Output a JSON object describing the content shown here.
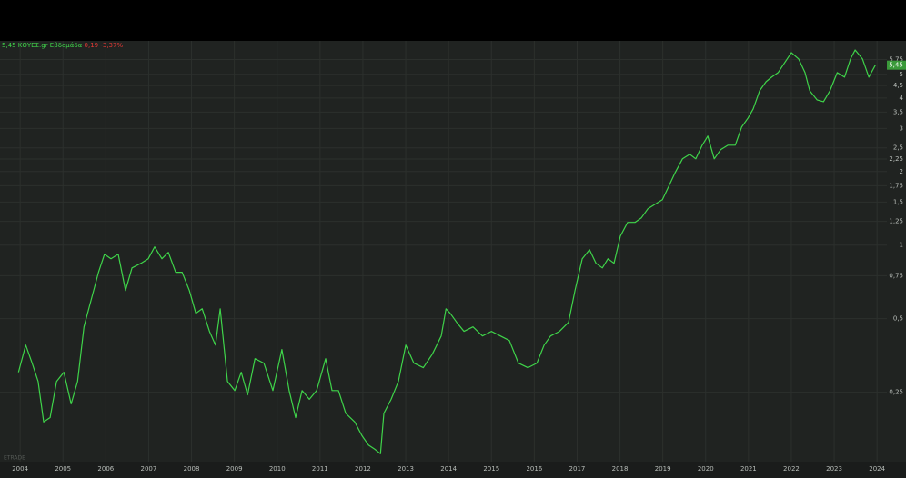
{
  "chart_data": {
    "type": "line",
    "title": "5,45 ΚΟΥΕΣ.gr Εβδομάδα",
    "subtitle": "-0,19 -3,37%",
    "price_label": "5,45",
    "watermark": "ETRADE",
    "color": "#3fd44a",
    "log_scale": true,
    "grid": true,
    "xlim": [
      2003.53,
      2024.23
    ],
    "xticks": [
      2004,
      2005,
      2006,
      2007,
      2008,
      2009,
      2010,
      2011,
      2012,
      2013,
      2014,
      2015,
      2016,
      2017,
      2018,
      2019,
      2020,
      2021,
      2022,
      2023,
      2024
    ],
    "ylim": [
      0.13,
      6.85
    ],
    "yticks": [
      {
        "value": 0.25,
        "label": "0,25"
      },
      {
        "value": 0.5,
        "label": "0,5"
      },
      {
        "value": 0.75,
        "label": "0,75"
      },
      1,
      {
        "value": 1.25,
        "label": "1,25"
      },
      {
        "value": 1.5,
        "label": "1,5"
      },
      {
        "value": 1.75,
        "label": "1,75"
      },
      2,
      {
        "value": 2.25,
        "label": "2,25"
      },
      {
        "value": 2.5,
        "label": "2,5"
      },
      3,
      {
        "value": 3.5,
        "label": "3,5"
      },
      4,
      {
        "value": 4.5,
        "label": "4,5"
      },
      5,
      {
        "value": 5.75,
        "label": "5,75"
      }
    ],
    "x": [
      2003.96,
      2004.13,
      2004.28,
      2004.42,
      2004.55,
      2004.7,
      2004.85,
      2005.02,
      2005.19,
      2005.34,
      2005.49,
      2005.66,
      2005.83,
      2005.97,
      2006.12,
      2006.29,
      2006.46,
      2006.61,
      2006.82,
      2006.99,
      2007.14,
      2007.31,
      2007.46,
      2007.63,
      2007.78,
      2007.95,
      2008.1,
      2008.25,
      2008.42,
      2008.56,
      2008.67,
      2008.84,
      2009.01,
      2009.16,
      2009.31,
      2009.48,
      2009.69,
      2009.9,
      2010.11,
      2010.28,
      2010.43,
      2010.58,
      2010.75,
      2010.92,
      2011.13,
      2011.28,
      2011.43,
      2011.6,
      2011.81,
      2011.98,
      2012.13,
      2012.28,
      2012.41,
      2012.49,
      2012.66,
      2012.83,
      2013.0,
      2013.19,
      2013.41,
      2013.62,
      2013.83,
      2013.94,
      2014.04,
      2014.19,
      2014.36,
      2014.57,
      2014.79,
      2015.0,
      2015.21,
      2015.42,
      2015.63,
      2015.85,
      2016.06,
      2016.23,
      2016.38,
      2016.59,
      2016.8,
      2016.95,
      2017.12,
      2017.29,
      2017.44,
      2017.59,
      2017.72,
      2017.86,
      2018.01,
      2018.18,
      2018.35,
      2018.5,
      2018.65,
      2018.82,
      2018.99,
      2019.14,
      2019.29,
      2019.46,
      2019.63,
      2019.77,
      2019.92,
      2020.05,
      2020.2,
      2020.35,
      2020.52,
      2020.69,
      2020.84,
      2020.99,
      2021.11,
      2021.26,
      2021.41,
      2021.54,
      2021.69,
      2021.83,
      2022.0,
      2022.17,
      2022.32,
      2022.43,
      2022.6,
      2022.75,
      2022.9,
      2023.07,
      2023.24,
      2023.38,
      2023.49,
      2023.66,
      2023.81,
      2023.96
    ],
    "values": [
      0.302,
      0.39,
      0.329,
      0.277,
      0.189,
      0.197,
      0.277,
      0.302,
      0.224,
      0.277,
      0.463,
      0.599,
      0.774,
      0.918,
      0.88,
      0.918,
      0.652,
      0.807,
      0.843,
      0.88,
      0.983,
      0.88,
      0.934,
      0.774,
      0.774,
      0.652,
      0.526,
      0.549,
      0.444,
      0.39,
      0.549,
      0.277,
      0.254,
      0.302,
      0.244,
      0.343,
      0.329,
      0.254,
      0.374,
      0.254,
      0.197,
      0.254,
      0.234,
      0.254,
      0.343,
      0.254,
      0.254,
      0.205,
      0.189,
      0.166,
      0.152,
      0.146,
      0.14,
      0.205,
      0.234,
      0.277,
      0.39,
      0.329,
      0.315,
      0.358,
      0.425,
      0.549,
      0.526,
      0.483,
      0.444,
      0.463,
      0.425,
      0.444,
      0.425,
      0.407,
      0.329,
      0.315,
      0.329,
      0.39,
      0.425,
      0.444,
      0.483,
      0.652,
      0.88,
      0.958,
      0.843,
      0.807,
      0.88,
      0.843,
      1.089,
      1.239,
      1.239,
      1.293,
      1.408,
      1.47,
      1.534,
      1.744,
      1.982,
      2.254,
      2.352,
      2.254,
      2.563,
      2.792,
      2.254,
      2.455,
      2.563,
      2.563,
      3.04,
      3.313,
      3.608,
      4.281,
      4.664,
      4.868,
      5.08,
      5.534,
      6.133,
      5.776,
      5.08,
      4.281,
      3.93,
      3.864,
      4.281,
      5.08,
      4.868,
      5.776,
      6.29,
      5.776,
      4.868,
      5.45
    ]
  }
}
